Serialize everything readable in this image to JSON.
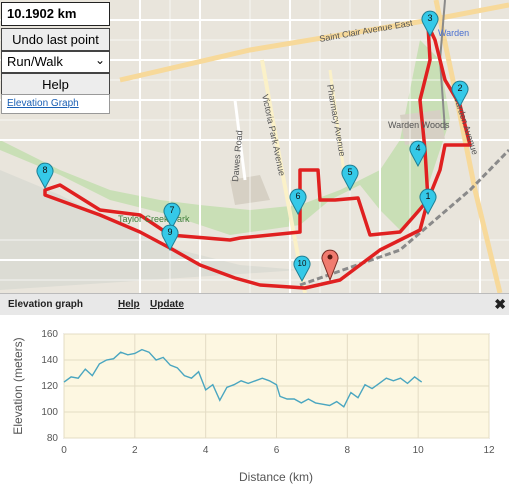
{
  "controls": {
    "distance": "10.1902 km",
    "undo_label": "Undo last point",
    "mode_value": "Run/Walk",
    "help_label": "Help",
    "elevation_link": "Elevation Graph"
  },
  "map": {
    "street_labels": {
      "st_clair": "Saint Clair Avenue East",
      "warden_station": "Warden",
      "warden_woods": "Warden Woods",
      "warden_ave": "Warden Avenue",
      "pharmacy": "Pharmacy Avenue",
      "victoria_park": "Victoria Park Avenue",
      "dawes": "Dawes Road",
      "taylor_creek": "Taylor Creek Park"
    },
    "markers": [
      "1",
      "2",
      "3",
      "4",
      "5",
      "6",
      "7",
      "8",
      "9",
      "10"
    ],
    "route_color": "#e02020",
    "marker_color": "#35c9e8",
    "end_marker_color": "#f07b6f"
  },
  "elevation_panel": {
    "title": "Elevation graph",
    "help": "Help",
    "update": "Update",
    "close": "✖"
  },
  "chart_data": {
    "type": "line",
    "xlabel": "Distance (km)",
    "ylabel": "Elevation (meters)",
    "xlim": [
      0,
      12
    ],
    "ylim": [
      80,
      160
    ],
    "xticks": [
      "0",
      "2",
      "4",
      "6",
      "8",
      "10",
      "12"
    ],
    "yticks": [
      "80",
      "100",
      "120",
      "140",
      "160"
    ],
    "series_color": "#4aa6c0",
    "series": [
      {
        "x": [
          0,
          0.2,
          0.4,
          0.6,
          0.8,
          1.0,
          1.2,
          1.4,
          1.6,
          1.8,
          2.0,
          2.2,
          2.4,
          2.6,
          2.8,
          3.0,
          3.2,
          3.4,
          3.6,
          3.8,
          4.0,
          4.2,
          4.4,
          4.6,
          4.8,
          5.0,
          5.2,
          5.4,
          5.6,
          5.8,
          6.0,
          6.1,
          6.3,
          6.5,
          6.7,
          6.9,
          7.1,
          7.3,
          7.5,
          7.7,
          7.9,
          8.1,
          8.3,
          8.5,
          8.7,
          8.9,
          9.1,
          9.3,
          9.5,
          9.7,
          9.9,
          10.1
        ],
        "values": [
          123,
          127,
          126,
          133,
          128,
          137,
          140,
          141,
          146,
          144,
          145,
          148,
          146,
          140,
          142,
          136,
          134,
          128,
          126,
          131,
          117,
          121,
          109,
          119,
          121,
          124,
          122,
          124,
          126,
          124,
          121,
          112,
          110,
          110,
          107,
          110,
          107,
          106,
          105,
          108,
          104,
          115,
          111,
          121,
          118,
          122,
          126,
          124,
          126,
          122,
          127,
          123
        ]
      }
    ]
  }
}
